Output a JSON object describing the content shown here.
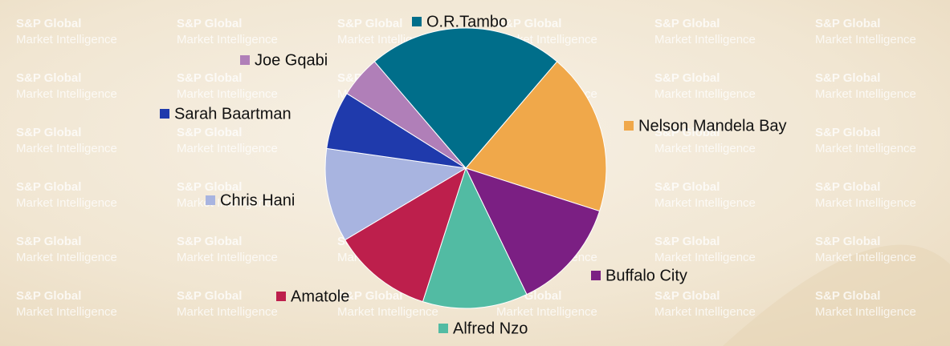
{
  "chart_data": {
    "type": "pie",
    "watermark": [
      "S&P Global",
      "Market Intelligence"
    ],
    "categories": [
      "O.R.Tambo",
      "Nelson Mandela Bay",
      "Buffalo City",
      "Alfred Nzo",
      "Amatole",
      "Chris Hani",
      "Sarah Baartman",
      "Joe Gqabi"
    ],
    "values": [
      22.5,
      18.7,
      12.9,
      12.1,
      11.5,
      10.8,
      6.7,
      4.8
    ],
    "colors": [
      "#006e8a",
      "#f0a84a",
      "#7b1f83",
      "#52bba3",
      "#bd1f4c",
      "#a8b4e0",
      "#1f3aac",
      "#b07fb8"
    ]
  }
}
